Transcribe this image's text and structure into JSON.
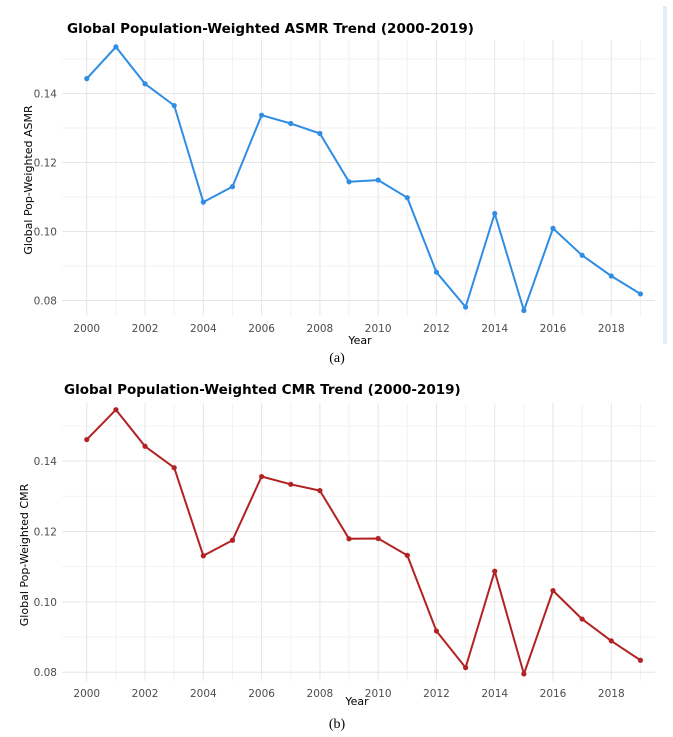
{
  "chart_data": [
    {
      "type": "line",
      "title": "Global Population-Weighted ASMR Trend (2000-2019)",
      "xlabel": "Year",
      "ylabel": "Global Pop-Weighted ASMR",
      "caption": "(a)",
      "color": "#2f8de4",
      "x": [
        2000,
        2001,
        2002,
        2003,
        2004,
        2005,
        2006,
        2007,
        2008,
        2009,
        2010,
        2011,
        2012,
        2013,
        2014,
        2015,
        2016,
        2017,
        2018,
        2019
      ],
      "values": [
        0.1443,
        0.1535,
        0.1428,
        0.1365,
        0.1085,
        0.113,
        0.1337,
        0.1313,
        0.1284,
        0.1144,
        0.1149,
        0.1098,
        0.0882,
        0.0781,
        0.1052,
        0.0771,
        0.1009,
        0.0931,
        0.0871,
        0.0819
      ],
      "xticks": [
        "2000",
        "2002",
        "2004",
        "2006",
        "2008",
        "2010",
        "2012",
        "2014",
        "2016",
        "2018"
      ],
      "yticks": [
        "0.08",
        "0.10",
        "0.12",
        "0.14"
      ],
      "xlim": [
        1999.15,
        2019.5
      ],
      "ylim": [
        0.0755,
        0.1555
      ]
    },
    {
      "type": "line",
      "title": "Global Population-Weighted CMR Trend (2000-2019)",
      "xlabel": "Year",
      "ylabel": "Global Pop-Weighted CMR",
      "caption": "(b)",
      "color": "#b22222",
      "x": [
        2000,
        2001,
        2002,
        2003,
        2004,
        2005,
        2006,
        2007,
        2008,
        2009,
        2010,
        2011,
        2012,
        2013,
        2014,
        2015,
        2016,
        2017,
        2018,
        2019
      ],
      "values": [
        0.1461,
        0.1546,
        0.1442,
        0.1381,
        0.1131,
        0.1175,
        0.1356,
        0.1334,
        0.1316,
        0.1179,
        0.118,
        0.1132,
        0.0917,
        0.0813,
        0.1087,
        0.0795,
        0.1032,
        0.0951,
        0.0889,
        0.0834
      ],
      "xticks": [
        "2000",
        "2002",
        "2004",
        "2006",
        "2008",
        "2010",
        "2012",
        "2014",
        "2016",
        "2018"
      ],
      "yticks": [
        "0.08",
        "0.10",
        "0.12",
        "0.14"
      ],
      "xlim": [
        1999.15,
        2019.5
      ],
      "ylim": [
        0.0775,
        0.1565
      ]
    }
  ]
}
